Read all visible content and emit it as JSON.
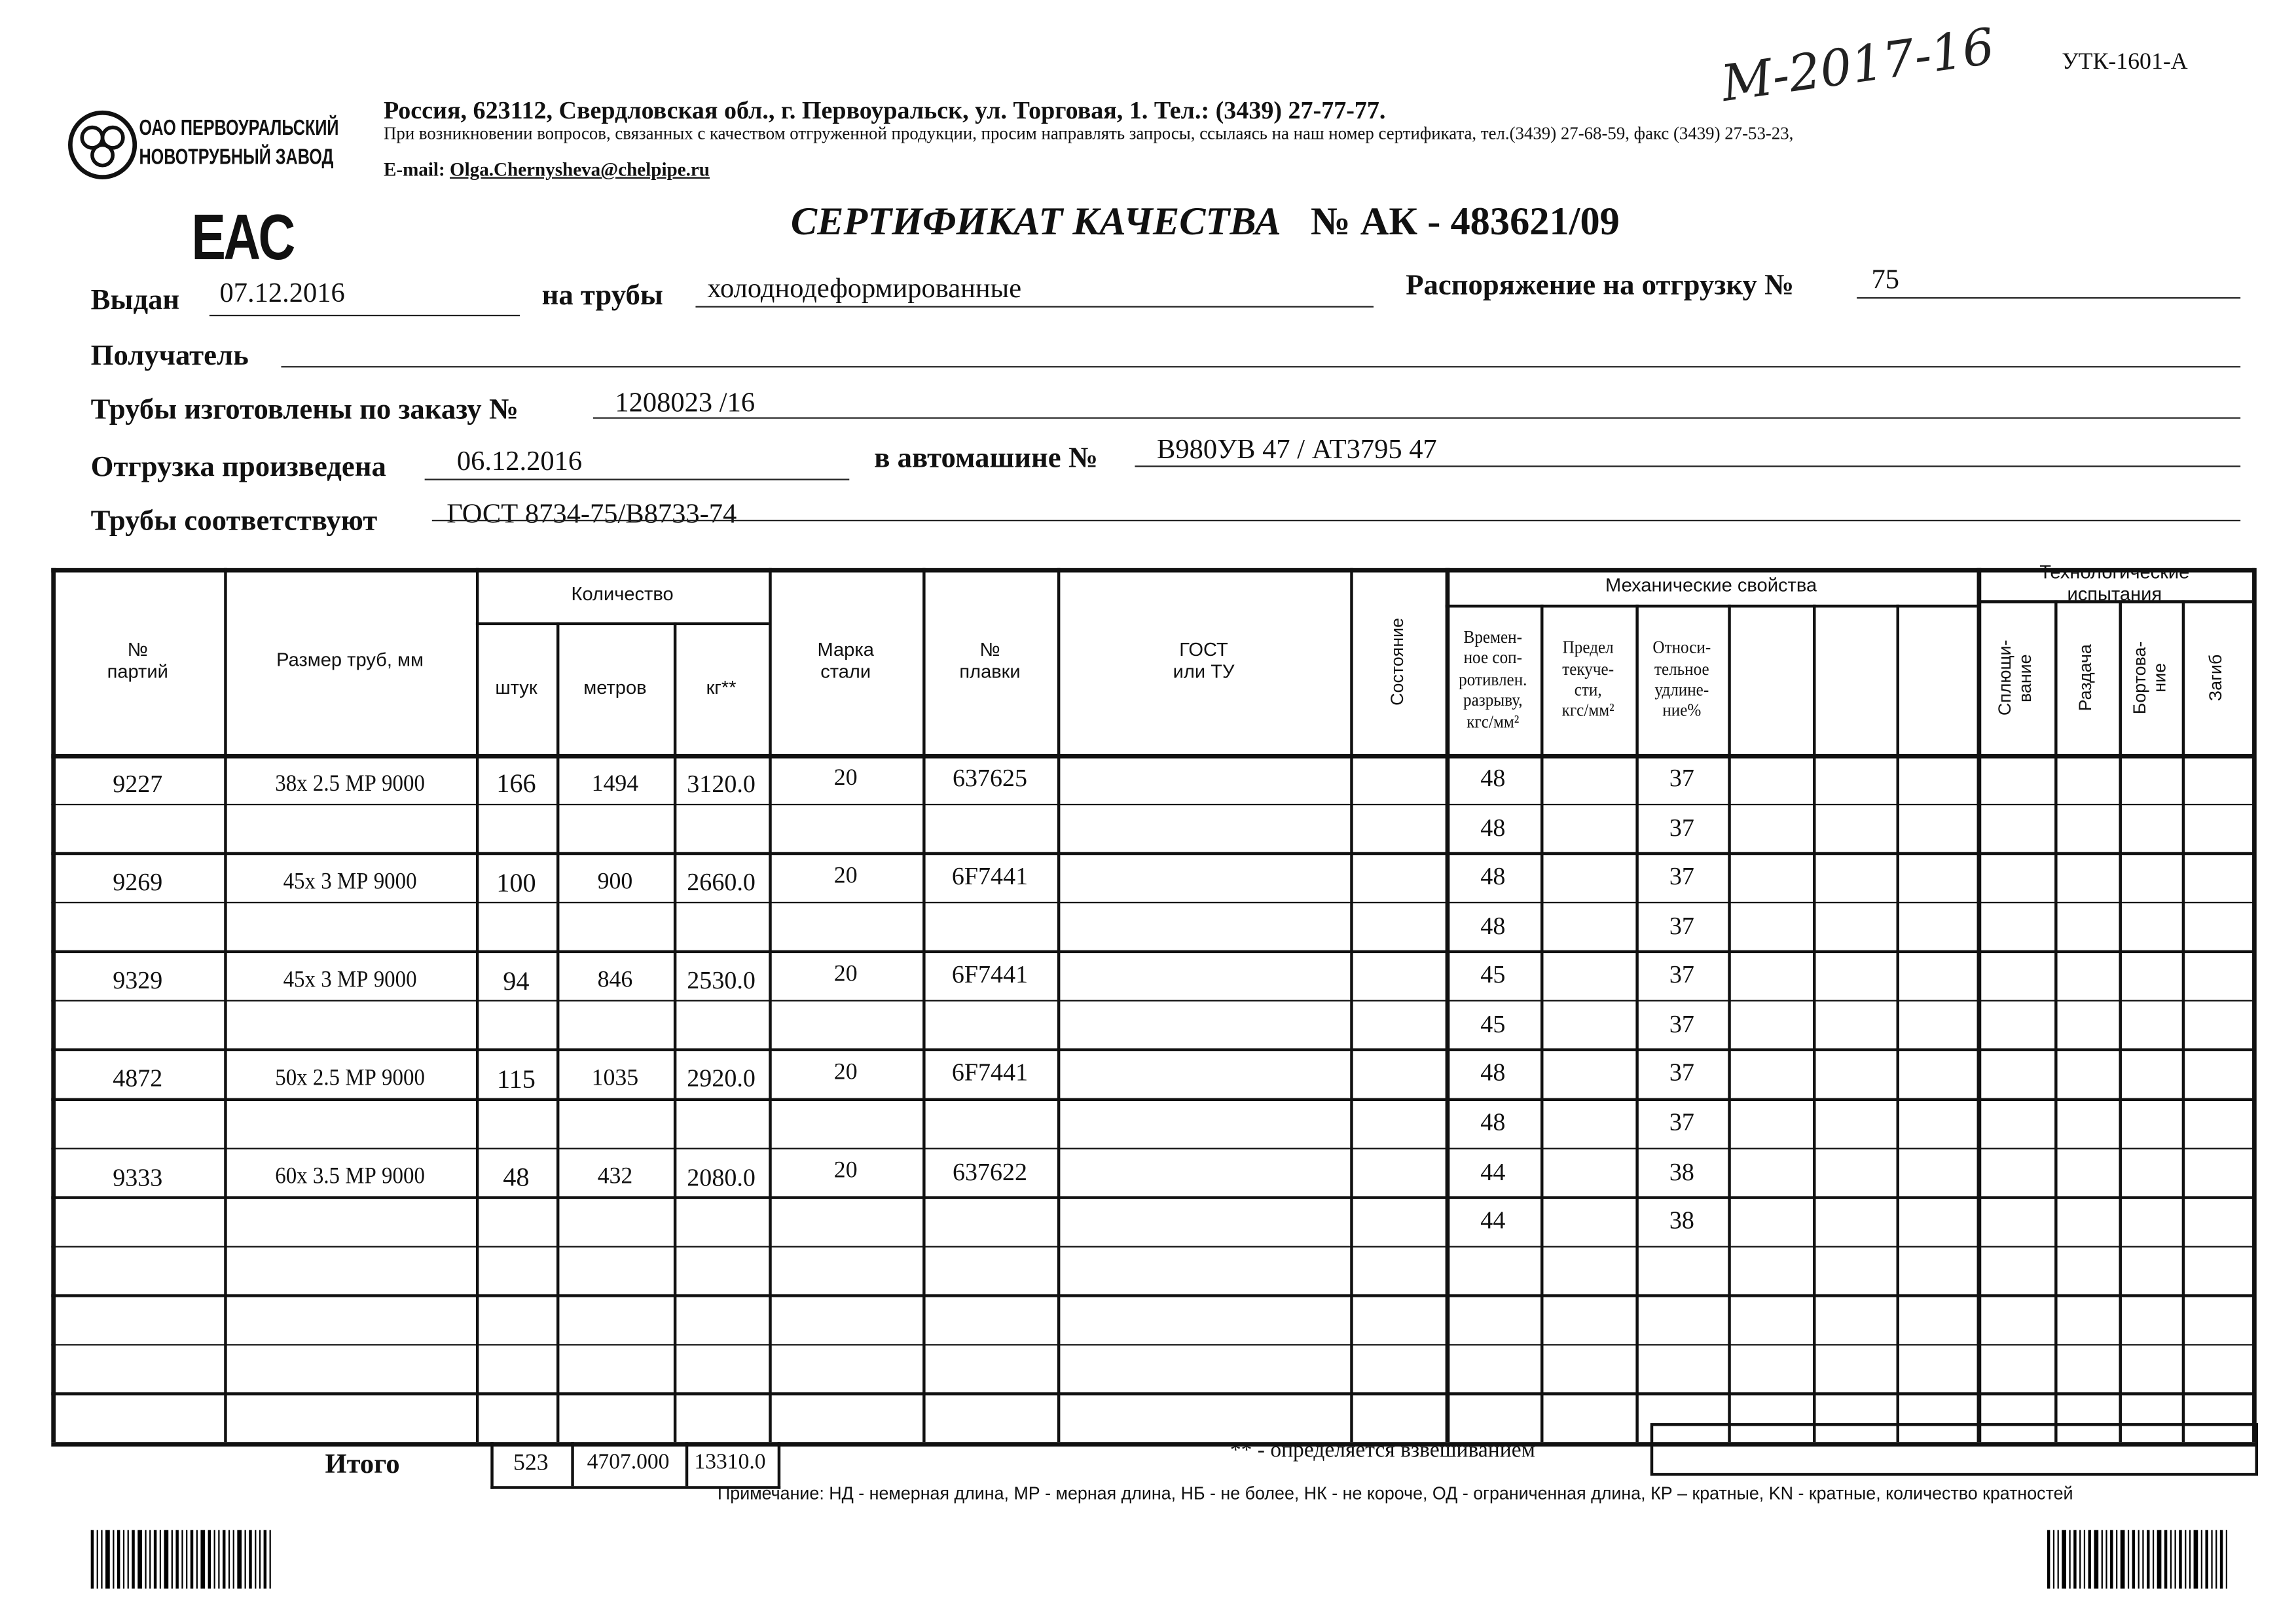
{
  "company": {
    "logo_line1": "ОАО ПЕРВОУРАЛЬСКИЙ",
    "logo_line2": "НОВОТРУБНЫЙ ЗАВОД",
    "address": "Россия, 623112, Свердловская обл., г. Первоуральск, ул. Торговая, 1. Тел.: (3439) 27-77-77.",
    "notice": "При возникновении вопросов, связанных с качеством отгруженной продукции, просим направлять запросы, ссылаясь на наш номер сертификата, тел.(3439) 27-68-59, факс (3439) 27-53-23,",
    "email_label": "E-mail:",
    "email": "Olga.Chernysheva@chelpipe.ru"
  },
  "form_code": "УТК-1601-А",
  "handwritten": "М-2017-16",
  "eac_mark": "EAC",
  "title": {
    "label": "СЕРТИФИКАТ КАЧЕСТВА",
    "number_label": "№  АК -",
    "number": "483621/09"
  },
  "fields": {
    "issued_label": "Выдан",
    "issued": "07.12.2016",
    "pipes_label": "на трубы",
    "pipes": "холоднодеформированные",
    "order_ship_label": "Распоряжение на отгрузку №",
    "order_ship": "75",
    "recipient_label": "Получатель",
    "recipient": "",
    "made_order_label": "Трубы изготовлены по заказу №",
    "made_order": "1208023   /16",
    "shipped_label": "Отгрузка произведена",
    "shipped": "06.12.2016",
    "truck_label": "в автомашине №",
    "truck": "В980УВ 47 / АТ3795 47",
    "conform_label": "Трубы соответствуют",
    "conform": "ГОСТ 8734-75/В8733-74"
  },
  "table": {
    "headers": {
      "batch": "№\nпартий",
      "size": "Размер труб, мм",
      "qty": "Количество",
      "pcs": "штук",
      "meters": "метров",
      "kg": "кг**",
      "steel": "Марка\nстали",
      "melt": "№\nплавки",
      "gost": "ГОСТ\nили ТУ",
      "state": "Состояние",
      "mech": "Механические свойства",
      "tensile": "Времен-\nное соп-\nротивлен.\nразрыву,\nкгс/мм²",
      "yield": "Предел\nтекуче-\nсти,\nкгс/мм²",
      "elong": "Относи-\nтельное\nудлине-\nние%",
      "tech": "Технологические\nиспытания",
      "flatten": "Сплющи-\nвание",
      "expand": "Раздача",
      "flange": "Бортова-\nние",
      "bend": "Загиб"
    },
    "batches": [
      {
        "batch": "9227",
        "size": "38x 2.5 МР 9000",
        "pcs": "166",
        "meters": "1494",
        "kg": "3120.0",
        "steel": "20",
        "melt": "637625",
        "tensile": [
          "48",
          "48"
        ],
        "elong": [
          "37",
          "37"
        ]
      },
      {
        "batch": "9269",
        "size": "45x 3 МР 9000",
        "pcs": "100",
        "meters": "900",
        "kg": "2660.0",
        "steel": "20",
        "melt": "6F7441",
        "tensile": [
          "48",
          "48"
        ],
        "elong": [
          "37",
          "37"
        ]
      },
      {
        "batch": "9329",
        "size": "45x 3 МР 9000",
        "pcs": "94",
        "meters": "846",
        "kg": "2530.0",
        "steel": "20",
        "melt": "6F7441",
        "tensile": [
          "45",
          "45"
        ],
        "elong": [
          "37",
          "37"
        ]
      },
      {
        "batch": "4872",
        "size": "50x 2.5 МР 9000",
        "pcs": "115",
        "meters": "1035",
        "kg": "2920.0",
        "steel": "20",
        "melt": "6F7441",
        "tensile": [
          "48",
          "48"
        ],
        "elong": [
          "37",
          "37"
        ]
      },
      {
        "batch": "9333",
        "size": "60x 3.5 МР 9000",
        "pcs": "48",
        "meters": "432",
        "kg": "2080.0",
        "steel": "20",
        "melt": "637622",
        "tensile": [
          "44",
          "44"
        ],
        "elong": [
          "38",
          "38"
        ]
      }
    ],
    "total": {
      "label": "Итого",
      "pcs": "523",
      "meters": "4707.000",
      "kg": "13310.0"
    }
  },
  "weighing_note": "** - определяется взвешиванием",
  "footnote": "Примечание: НД - немерная длина, МР - мерная длина, НБ - не более, НК - не короче, ОД - ограниченная длина, КР – кратные, KN - кратные, количество кратностей"
}
